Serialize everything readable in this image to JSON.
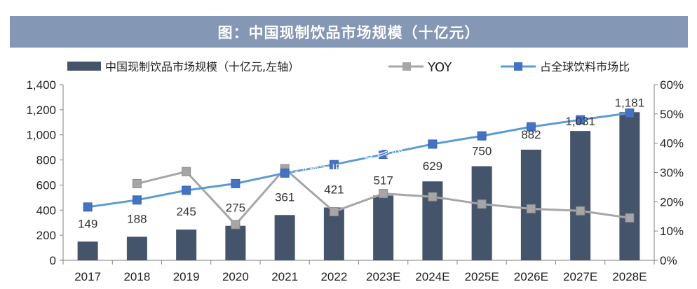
{
  "header": {
    "title": "图：中国现制饮品市场规模（十亿元）"
  },
  "watermark": {
    "brand": "并购家",
    "site": "行业报告 IPOIPO.CN"
  },
  "chart_data": {
    "type": "bar",
    "categories": [
      "2017",
      "2018",
      "2019",
      "2020",
      "2021",
      "2022",
      "2023E",
      "2024E",
      "2025E",
      "2026E",
      "2027E",
      "2028E"
    ],
    "series": [
      {
        "name": "中国现制饮品市场规模（十亿元,左轴）",
        "type": "bar",
        "axis": "left",
        "values": [
          149,
          188,
          245,
          275,
          361,
          421,
          517,
          629,
          750,
          882,
          1031,
          1181
        ],
        "labels": [
          "149",
          "188",
          "245",
          "275",
          "361",
          "421",
          "517",
          "629",
          "750",
          "882",
          "1,031",
          "1,181"
        ],
        "color": "#44546a"
      },
      {
        "name": "YOY",
        "type": "line",
        "axis": "right",
        "values": [
          null,
          0.262,
          0.303,
          0.122,
          0.313,
          0.166,
          0.228,
          0.217,
          0.192,
          0.176,
          0.169,
          0.145
        ],
        "color": "#a6a6a6"
      },
      {
        "name": "占全球饮料市场比",
        "type": "line",
        "axis": "right",
        "values": [
          0.182,
          0.206,
          0.239,
          0.262,
          0.298,
          0.327,
          0.362,
          0.397,
          0.425,
          0.456,
          0.48,
          0.503
        ],
        "color": "#5b9bd5"
      }
    ],
    "y_left": {
      "ylim": [
        0,
        1400
      ],
      "ticks": [
        0,
        200,
        400,
        600,
        800,
        1000,
        1200,
        1400
      ],
      "tick_labels": [
        "0",
        "200",
        "400",
        "600",
        "800",
        "1,000",
        "1,200",
        "1,400"
      ]
    },
    "y_right": {
      "ylim": [
        0,
        0.6
      ],
      "ticks": [
        0,
        0.1,
        0.2,
        0.3,
        0.4,
        0.5,
        0.6
      ],
      "tick_labels": [
        "0%",
        "10%",
        "20%",
        "30%",
        "40%",
        "50%",
        "60%"
      ]
    },
    "legend_position": "top",
    "grid": false
  }
}
